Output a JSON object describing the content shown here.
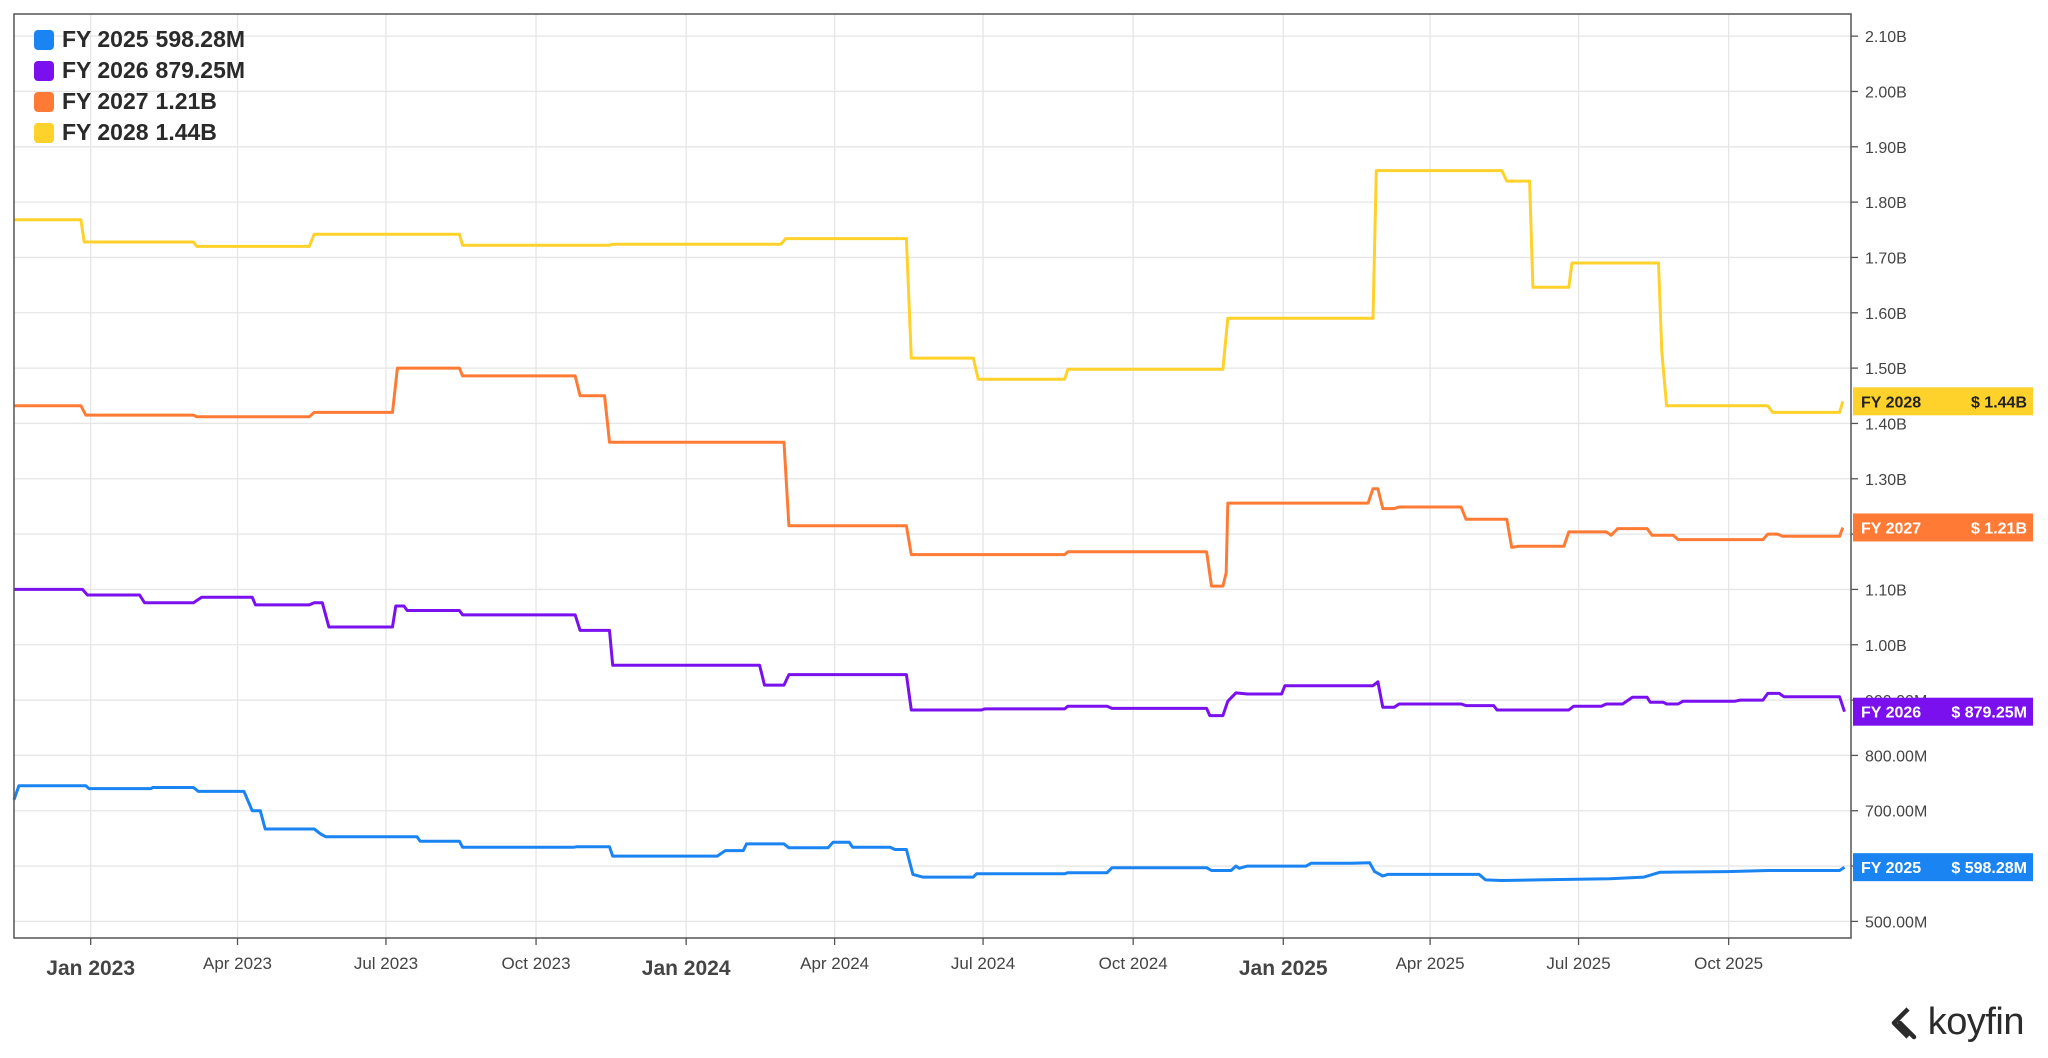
{
  "chart_data": {
    "type": "line",
    "x_tick_labels": [
      "Jan 2023",
      "Apr 2023",
      "Jul 2023",
      "Oct 2023",
      "Jan 2024",
      "Apr 2024",
      "Jul 2024",
      "Oct 2024",
      "Jan 2025",
      "Apr 2025",
      "Jul 2025",
      "Oct 2025"
    ],
    "x_tick_dates": [
      "2023-01-01",
      "2023-04-01",
      "2023-07-01",
      "2023-10-01",
      "2024-01-01",
      "2024-04-01",
      "2024-07-01",
      "2024-10-01",
      "2025-01-01",
      "2025-04-01",
      "2025-07-01",
      "2025-10-01"
    ],
    "x_tick_major": [
      "Jan 2023",
      "Jan 2024",
      "Jan 2025"
    ],
    "xlim": [
      "2022-11-15",
      "2025-12-15"
    ],
    "y_tick_labels": [
      "500.00M",
      "600.00M",
      "700.00M",
      "800.00M",
      "900.00M",
      "1.00B",
      "1.10B",
      "1.20B",
      "1.30B",
      "1.40B",
      "1.50B",
      "1.60B",
      "1.70B",
      "1.80B",
      "1.90B",
      "2.00B",
      "2.10B"
    ],
    "y_tick_values": [
      500,
      600,
      700,
      800,
      900,
      1000,
      1100,
      1200,
      1300,
      1400,
      1500,
      1600,
      1700,
      1800,
      1900,
      2000,
      2100
    ],
    "y_units": "M",
    "ylim": [
      470,
      2140
    ],
    "y_axis_position": "right",
    "grid": true,
    "legend_position": "top-left",
    "series": [
      {
        "name": "FY 2025",
        "latest": "598.28M",
        "tag_label": "FY 2025",
        "tag_value": "$ 598.28M",
        "color": "#1a84f2",
        "points": [
          [
            "2022-11-15",
            720
          ],
          [
            "2022-11-18",
            745
          ],
          [
            "2022-12-29",
            745
          ],
          [
            "2022-12-31",
            740
          ],
          [
            "2023-02-07",
            740
          ],
          [
            "2023-02-08",
            742
          ],
          [
            "2023-03-05",
            742
          ],
          [
            "2023-03-08",
            735
          ],
          [
            "2023-04-05",
            735
          ],
          [
            "2023-04-10",
            700
          ],
          [
            "2023-04-15",
            700
          ],
          [
            "2023-04-18",
            667
          ],
          [
            "2023-05-18",
            667
          ],
          [
            "2023-05-22",
            658
          ],
          [
            "2023-05-25",
            653
          ],
          [
            "2023-07-20",
            653
          ],
          [
            "2023-07-22",
            645
          ],
          [
            "2023-08-15",
            645
          ],
          [
            "2023-08-17",
            634
          ],
          [
            "2023-10-24",
            634
          ],
          [
            "2023-10-26",
            635
          ],
          [
            "2023-11-15",
            635
          ],
          [
            "2023-11-17",
            618
          ],
          [
            "2024-01-20",
            618
          ],
          [
            "2024-01-25",
            628
          ],
          [
            "2024-02-05",
            628
          ],
          [
            "2024-02-07",
            640
          ],
          [
            "2024-03-01",
            640
          ],
          [
            "2024-03-04",
            633
          ],
          [
            "2024-03-28",
            633
          ],
          [
            "2024-03-31",
            643
          ],
          [
            "2024-04-10",
            643
          ],
          [
            "2024-04-12",
            634
          ],
          [
            "2024-05-05",
            634
          ],
          [
            "2024-05-08",
            630
          ],
          [
            "2024-05-15",
            630
          ],
          [
            "2024-05-19",
            585
          ],
          [
            "2024-05-25",
            580
          ],
          [
            "2024-06-25",
            580
          ],
          [
            "2024-06-27",
            586
          ],
          [
            "2024-08-20",
            586
          ],
          [
            "2024-08-22",
            588
          ],
          [
            "2024-09-15",
            588
          ],
          [
            "2024-09-18",
            597
          ],
          [
            "2024-11-15",
            597
          ],
          [
            "2024-11-18",
            592
          ],
          [
            "2024-11-30",
            592
          ],
          [
            "2024-12-03",
            600
          ],
          [
            "2024-12-05",
            596
          ],
          [
            "2024-12-10",
            600
          ],
          [
            "2025-01-15",
            600
          ],
          [
            "2025-01-18",
            605
          ],
          [
            "2025-02-12",
            605
          ],
          [
            "2025-02-23",
            606
          ],
          [
            "2025-02-26",
            590
          ],
          [
            "2025-03-03",
            582
          ],
          [
            "2025-03-06",
            585
          ],
          [
            "2025-05-01",
            585
          ],
          [
            "2025-05-05",
            575
          ],
          [
            "2025-05-15",
            574
          ],
          [
            "2025-06-25",
            576
          ],
          [
            "2025-07-20",
            577
          ],
          [
            "2025-08-10",
            580
          ],
          [
            "2025-08-20",
            589
          ],
          [
            "2025-09-30",
            590
          ],
          [
            "2025-10-25",
            592
          ],
          [
            "2025-12-08",
            592
          ],
          [
            "2025-12-11",
            598
          ]
        ]
      },
      {
        "name": "FY 2026",
        "latest": "879.25M",
        "tag_label": "FY 2026",
        "tag_value": "$ 879.25M",
        "color": "#7a10ee",
        "points": [
          [
            "2022-11-15",
            1100
          ],
          [
            "2022-12-27",
            1100
          ],
          [
            "2022-12-30",
            1090
          ],
          [
            "2023-01-31",
            1090
          ],
          [
            "2023-02-03",
            1076
          ],
          [
            "2023-03-05",
            1076
          ],
          [
            "2023-03-10",
            1086
          ],
          [
            "2023-04-10",
            1086
          ],
          [
            "2023-04-12",
            1072
          ],
          [
            "2023-05-15",
            1072
          ],
          [
            "2023-05-18",
            1076
          ],
          [
            "2023-05-23",
            1076
          ],
          [
            "2023-05-27",
            1032
          ],
          [
            "2023-07-05",
            1032
          ],
          [
            "2023-07-07",
            1070
          ],
          [
            "2023-07-12",
            1070
          ],
          [
            "2023-07-14",
            1062
          ],
          [
            "2023-08-15",
            1062
          ],
          [
            "2023-08-17",
            1054
          ],
          [
            "2023-10-25",
            1054
          ],
          [
            "2023-10-28",
            1026
          ],
          [
            "2023-11-15",
            1026
          ],
          [
            "2023-11-17",
            963
          ],
          [
            "2024-02-15",
            963
          ],
          [
            "2024-02-18",
            927
          ],
          [
            "2024-03-01",
            927
          ],
          [
            "2024-03-04",
            946
          ],
          [
            "2024-05-15",
            946
          ],
          [
            "2024-05-18",
            882
          ],
          [
            "2024-06-30",
            882
          ],
          [
            "2024-07-02",
            884
          ],
          [
            "2024-08-20",
            884
          ],
          [
            "2024-08-22",
            889
          ],
          [
            "2024-09-15",
            889
          ],
          [
            "2024-09-18",
            885
          ],
          [
            "2024-11-15",
            885
          ],
          [
            "2024-11-17",
            872
          ],
          [
            "2024-11-25",
            872
          ],
          [
            "2024-11-28",
            898
          ],
          [
            "2024-12-03",
            913
          ],
          [
            "2024-12-10",
            911
          ],
          [
            "2024-12-31",
            911
          ],
          [
            "2025-01-02",
            926
          ],
          [
            "2025-02-25",
            926
          ],
          [
            "2025-02-28",
            933
          ],
          [
            "2025-03-03",
            887
          ],
          [
            "2025-03-10",
            887
          ],
          [
            "2025-03-13",
            893
          ],
          [
            "2025-04-20",
            893
          ],
          [
            "2025-04-23",
            890
          ],
          [
            "2025-05-10",
            890
          ],
          [
            "2025-05-12",
            882
          ],
          [
            "2025-06-25",
            882
          ],
          [
            "2025-06-28",
            889
          ],
          [
            "2025-07-15",
            889
          ],
          [
            "2025-07-18",
            893
          ],
          [
            "2025-07-28",
            893
          ],
          [
            "2025-08-03",
            905
          ],
          [
            "2025-08-12",
            905
          ],
          [
            "2025-08-14",
            896
          ],
          [
            "2025-08-22",
            896
          ],
          [
            "2025-08-24",
            893
          ],
          [
            "2025-08-31",
            893
          ],
          [
            "2025-09-03",
            898
          ],
          [
            "2025-10-05",
            898
          ],
          [
            "2025-10-08",
            900
          ],
          [
            "2025-10-22",
            900
          ],
          [
            "2025-10-25",
            912
          ],
          [
            "2025-11-01",
            912
          ],
          [
            "2025-11-04",
            906
          ],
          [
            "2025-12-08",
            906
          ],
          [
            "2025-12-11",
            879
          ]
        ]
      },
      {
        "name": "FY 2027",
        "latest": "1.21B",
        "tag_label": "FY 2027",
        "tag_value": "$ 1.21B",
        "color": "#ff7b35",
        "points": [
          [
            "2022-11-15",
            1432
          ],
          [
            "2022-12-26",
            1432
          ],
          [
            "2022-12-29",
            1415
          ],
          [
            "2023-03-05",
            1415
          ],
          [
            "2023-03-07",
            1412
          ],
          [
            "2023-05-15",
            1412
          ],
          [
            "2023-05-18",
            1420
          ],
          [
            "2023-07-05",
            1420
          ],
          [
            "2023-07-08",
            1500
          ],
          [
            "2023-08-15",
            1500
          ],
          [
            "2023-08-17",
            1486
          ],
          [
            "2023-10-25",
            1486
          ],
          [
            "2023-10-28",
            1450
          ],
          [
            "2023-11-12",
            1450
          ],
          [
            "2023-11-15",
            1366
          ],
          [
            "2024-03-01",
            1366
          ],
          [
            "2024-03-04",
            1215
          ],
          [
            "2024-05-15",
            1215
          ],
          [
            "2024-05-18",
            1163
          ],
          [
            "2024-08-20",
            1163
          ],
          [
            "2024-08-22",
            1168
          ],
          [
            "2024-11-15",
            1168
          ],
          [
            "2024-11-18",
            1106
          ],
          [
            "2024-11-25",
            1106
          ],
          [
            "2024-11-27",
            1130
          ],
          [
            "2024-11-28",
            1256
          ],
          [
            "2025-02-22",
            1256
          ],
          [
            "2025-02-25",
            1282
          ],
          [
            "2025-02-28",
            1282
          ],
          [
            "2025-03-03",
            1246
          ],
          [
            "2025-03-10",
            1246
          ],
          [
            "2025-03-13",
            1249
          ],
          [
            "2025-04-20",
            1249
          ],
          [
            "2025-04-23",
            1227
          ],
          [
            "2025-05-18",
            1227
          ],
          [
            "2025-05-21",
            1176
          ],
          [
            "2025-05-25",
            1178
          ],
          [
            "2025-06-22",
            1178
          ],
          [
            "2025-06-25",
            1204
          ],
          [
            "2025-07-18",
            1204
          ],
          [
            "2025-07-21",
            1198
          ],
          [
            "2025-07-25",
            1210
          ],
          [
            "2025-08-12",
            1210
          ],
          [
            "2025-08-15",
            1198
          ],
          [
            "2025-08-28",
            1198
          ],
          [
            "2025-08-31",
            1190
          ],
          [
            "2025-10-22",
            1190
          ],
          [
            "2025-10-25",
            1200
          ],
          [
            "2025-10-31",
            1200
          ],
          [
            "2025-11-03",
            1196
          ],
          [
            "2025-12-08",
            1196
          ],
          [
            "2025-12-10",
            1212
          ]
        ]
      },
      {
        "name": "FY 2028",
        "latest": "1.44B",
        "tag_label": "FY 2028",
        "tag_value": "$ 1.44B",
        "color": "#ffd12b",
        "points": [
          [
            "2022-11-15",
            1768
          ],
          [
            "2022-12-26",
            1768
          ],
          [
            "2022-12-28",
            1728
          ],
          [
            "2023-03-05",
            1728
          ],
          [
            "2023-03-07",
            1720
          ],
          [
            "2023-05-15",
            1720
          ],
          [
            "2023-05-18",
            1742
          ],
          [
            "2023-08-15",
            1742
          ],
          [
            "2023-08-17",
            1722
          ],
          [
            "2023-11-15",
            1722
          ],
          [
            "2023-11-17",
            1724
          ],
          [
            "2024-02-28",
            1724
          ],
          [
            "2024-03-02",
            1734
          ],
          [
            "2024-05-15",
            1734
          ],
          [
            "2024-05-18",
            1518
          ],
          [
            "2024-06-25",
            1518
          ],
          [
            "2024-06-28",
            1480
          ],
          [
            "2024-08-20",
            1480
          ],
          [
            "2024-08-22",
            1498
          ],
          [
            "2024-11-25",
            1498
          ],
          [
            "2024-11-28",
            1590
          ],
          [
            "2025-02-25",
            1590
          ],
          [
            "2025-02-27",
            1857
          ],
          [
            "2025-05-15",
            1857
          ],
          [
            "2025-05-18",
            1838
          ],
          [
            "2025-06-01",
            1838
          ],
          [
            "2025-06-03",
            1646
          ],
          [
            "2025-06-25",
            1646
          ],
          [
            "2025-06-27",
            1690
          ],
          [
            "2025-08-19",
            1690
          ],
          [
            "2025-08-21",
            1530
          ],
          [
            "2025-08-24",
            1432
          ],
          [
            "2025-10-25",
            1432
          ],
          [
            "2025-10-28",
            1420
          ],
          [
            "2025-12-08",
            1420
          ],
          [
            "2025-12-10",
            1440
          ]
        ]
      }
    ]
  },
  "logo": {
    "text": "koyfin",
    "icon": "koyfin-chevron-icon"
  }
}
